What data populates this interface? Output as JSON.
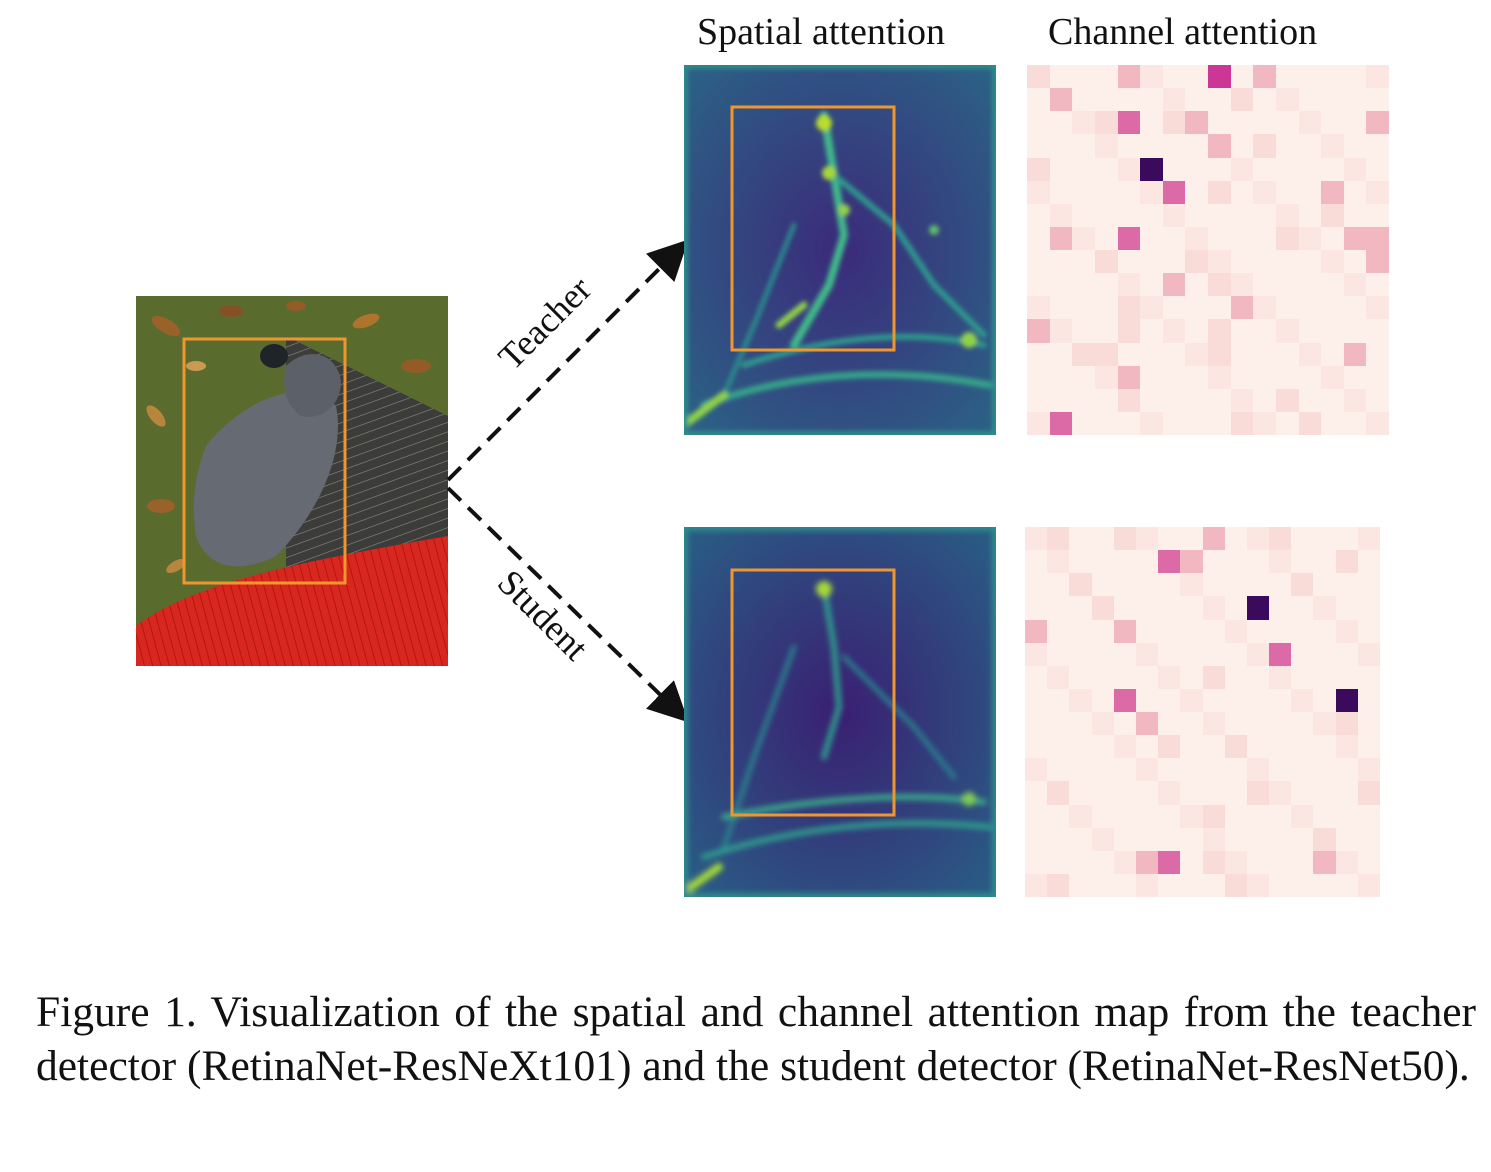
{
  "headers": {
    "spatial": "Spatial attention",
    "channel": "Channel attention"
  },
  "arrows": {
    "teacher": "Teacher",
    "student": "Student"
  },
  "caption": "Figure 1.  Visualization of the spatial and channel attention map from the teacher detector (RetinaNet-ResNeXt101) and the student detector (RetinaNet-ResNet50).",
  "colors": {
    "box": "#f0962e",
    "arrow": "#111111",
    "heat_low": "#2c0f63",
    "heat_mid": "#2d6f8e",
    "heat_high": "#b9de2b",
    "channel_low": "#fdf0ea",
    "channel_mid": "#f2b8c2",
    "channel_high": "#cc3797",
    "channel_max": "#3a0a5c",
    "sweater": "#d8271e",
    "trousers": "#3a3a38",
    "grass": "#5a6b2e",
    "cat": "#6a6e76"
  },
  "channel_maps": {
    "teacher": [
      [
        1,
        0,
        0,
        0,
        2,
        0,
        0,
        0,
        4,
        0,
        2,
        0,
        0,
        0,
        0,
        0
      ],
      [
        0,
        2,
        0,
        0,
        0,
        0,
        0,
        0,
        0,
        1,
        0,
        0,
        0,
        0,
        0,
        0
      ],
      [
        0,
        0,
        0,
        1,
        3,
        0,
        1,
        2,
        0,
        0,
        0,
        0,
        0,
        0,
        0,
        2
      ],
      [
        0,
        0,
        0,
        0,
        0,
        0,
        0,
        0,
        2,
        0,
        1,
        0,
        0,
        0,
        0,
        0
      ],
      [
        1,
        0,
        0,
        0,
        0,
        5,
        0,
        0,
        0,
        0,
        0,
        0,
        0,
        0,
        0,
        0
      ],
      [
        0,
        0,
        0,
        0,
        0,
        0,
        3,
        0,
        1,
        0,
        0,
        0,
        0,
        2,
        0,
        0
      ],
      [
        0,
        0,
        0,
        0,
        0,
        0,
        0,
        0,
        0,
        0,
        0,
        0,
        0,
        1,
        0,
        0
      ],
      [
        0,
        2,
        0,
        0,
        3,
        0,
        0,
        0,
        0,
        0,
        0,
        1,
        0,
        0,
        2,
        2
      ],
      [
        0,
        0,
        0,
        1,
        0,
        0,
        0,
        1,
        0,
        0,
        0,
        0,
        0,
        0,
        0,
        2
      ],
      [
        0,
        0,
        0,
        0,
        0,
        0,
        2,
        0,
        1,
        0,
        0,
        0,
        0,
        0,
        0,
        0
      ],
      [
        0,
        0,
        0,
        0,
        1,
        0,
        0,
        0,
        0,
        2,
        0,
        0,
        0,
        0,
        0,
        0
      ],
      [
        2,
        0,
        0,
        0,
        1,
        0,
        0,
        0,
        1,
        0,
        0,
        0,
        0,
        0,
        0,
        0
      ],
      [
        0,
        0,
        1,
        1,
        0,
        0,
        0,
        0,
        1,
        0,
        0,
        0,
        0,
        0,
        2,
        0
      ],
      [
        0,
        0,
        0,
        0,
        2,
        0,
        0,
        0,
        0,
        0,
        0,
        0,
        0,
        0,
        0,
        0
      ],
      [
        0,
        0,
        0,
        0,
        1,
        0,
        0,
        0,
        0,
        0,
        0,
        1,
        0,
        0,
        0,
        0
      ],
      [
        0,
        3,
        0,
        0,
        0,
        0,
        0,
        0,
        0,
        1,
        0,
        0,
        1,
        0,
        0,
        0
      ]
    ],
    "student": [
      [
        0,
        1,
        0,
        0,
        1,
        0,
        0,
        0,
        2,
        0,
        0,
        1,
        0,
        0,
        0,
        0
      ],
      [
        0,
        0,
        0,
        0,
        0,
        0,
        3,
        2,
        0,
        0,
        0,
        0,
        0,
        0,
        1,
        0
      ],
      [
        0,
        0,
        1,
        0,
        0,
        0,
        0,
        0,
        0,
        0,
        0,
        0,
        1,
        0,
        0,
        0
      ],
      [
        0,
        0,
        0,
        1,
        0,
        0,
        0,
        0,
        0,
        0,
        5,
        0,
        0,
        0,
        0,
        0
      ],
      [
        2,
        0,
        0,
        0,
        2,
        0,
        0,
        0,
        0,
        0,
        0,
        0,
        0,
        0,
        0,
        0
      ],
      [
        0,
        0,
        0,
        0,
        0,
        0,
        0,
        0,
        0,
        0,
        0,
        3,
        0,
        0,
        0,
        0
      ],
      [
        0,
        0,
        0,
        0,
        0,
        0,
        0,
        0,
        1,
        0,
        0,
        0,
        0,
        0,
        0,
        0
      ],
      [
        0,
        0,
        0,
        0,
        3,
        0,
        0,
        0,
        0,
        0,
        0,
        0,
        0,
        0,
        5,
        0
      ],
      [
        0,
        0,
        0,
        0,
        0,
        2,
        0,
        0,
        0,
        0,
        0,
        0,
        0,
        0,
        1,
        0
      ],
      [
        0,
        0,
        0,
        0,
        0,
        0,
        1,
        0,
        0,
        1,
        0,
        0,
        0,
        0,
        0,
        0
      ],
      [
        0,
        0,
        0,
        0,
        0,
        0,
        0,
        0,
        0,
        0,
        0,
        0,
        0,
        0,
        0,
        0
      ],
      [
        0,
        1,
        0,
        0,
        0,
        0,
        0,
        0,
        0,
        0,
        1,
        0,
        0,
        0,
        0,
        1
      ],
      [
        0,
        0,
        0,
        0,
        0,
        0,
        0,
        0,
        1,
        0,
        0,
        0,
        0,
        0,
        0,
        0
      ],
      [
        0,
        0,
        0,
        0,
        0,
        0,
        0,
        0,
        0,
        0,
        0,
        0,
        0,
        1,
        0,
        0
      ],
      [
        0,
        0,
        0,
        0,
        0,
        2,
        3,
        0,
        1,
        0,
        0,
        0,
        0,
        2,
        0,
        0
      ],
      [
        0,
        1,
        0,
        0,
        0,
        0,
        0,
        0,
        0,
        1,
        0,
        0,
        0,
        0,
        0,
        0
      ]
    ]
  }
}
